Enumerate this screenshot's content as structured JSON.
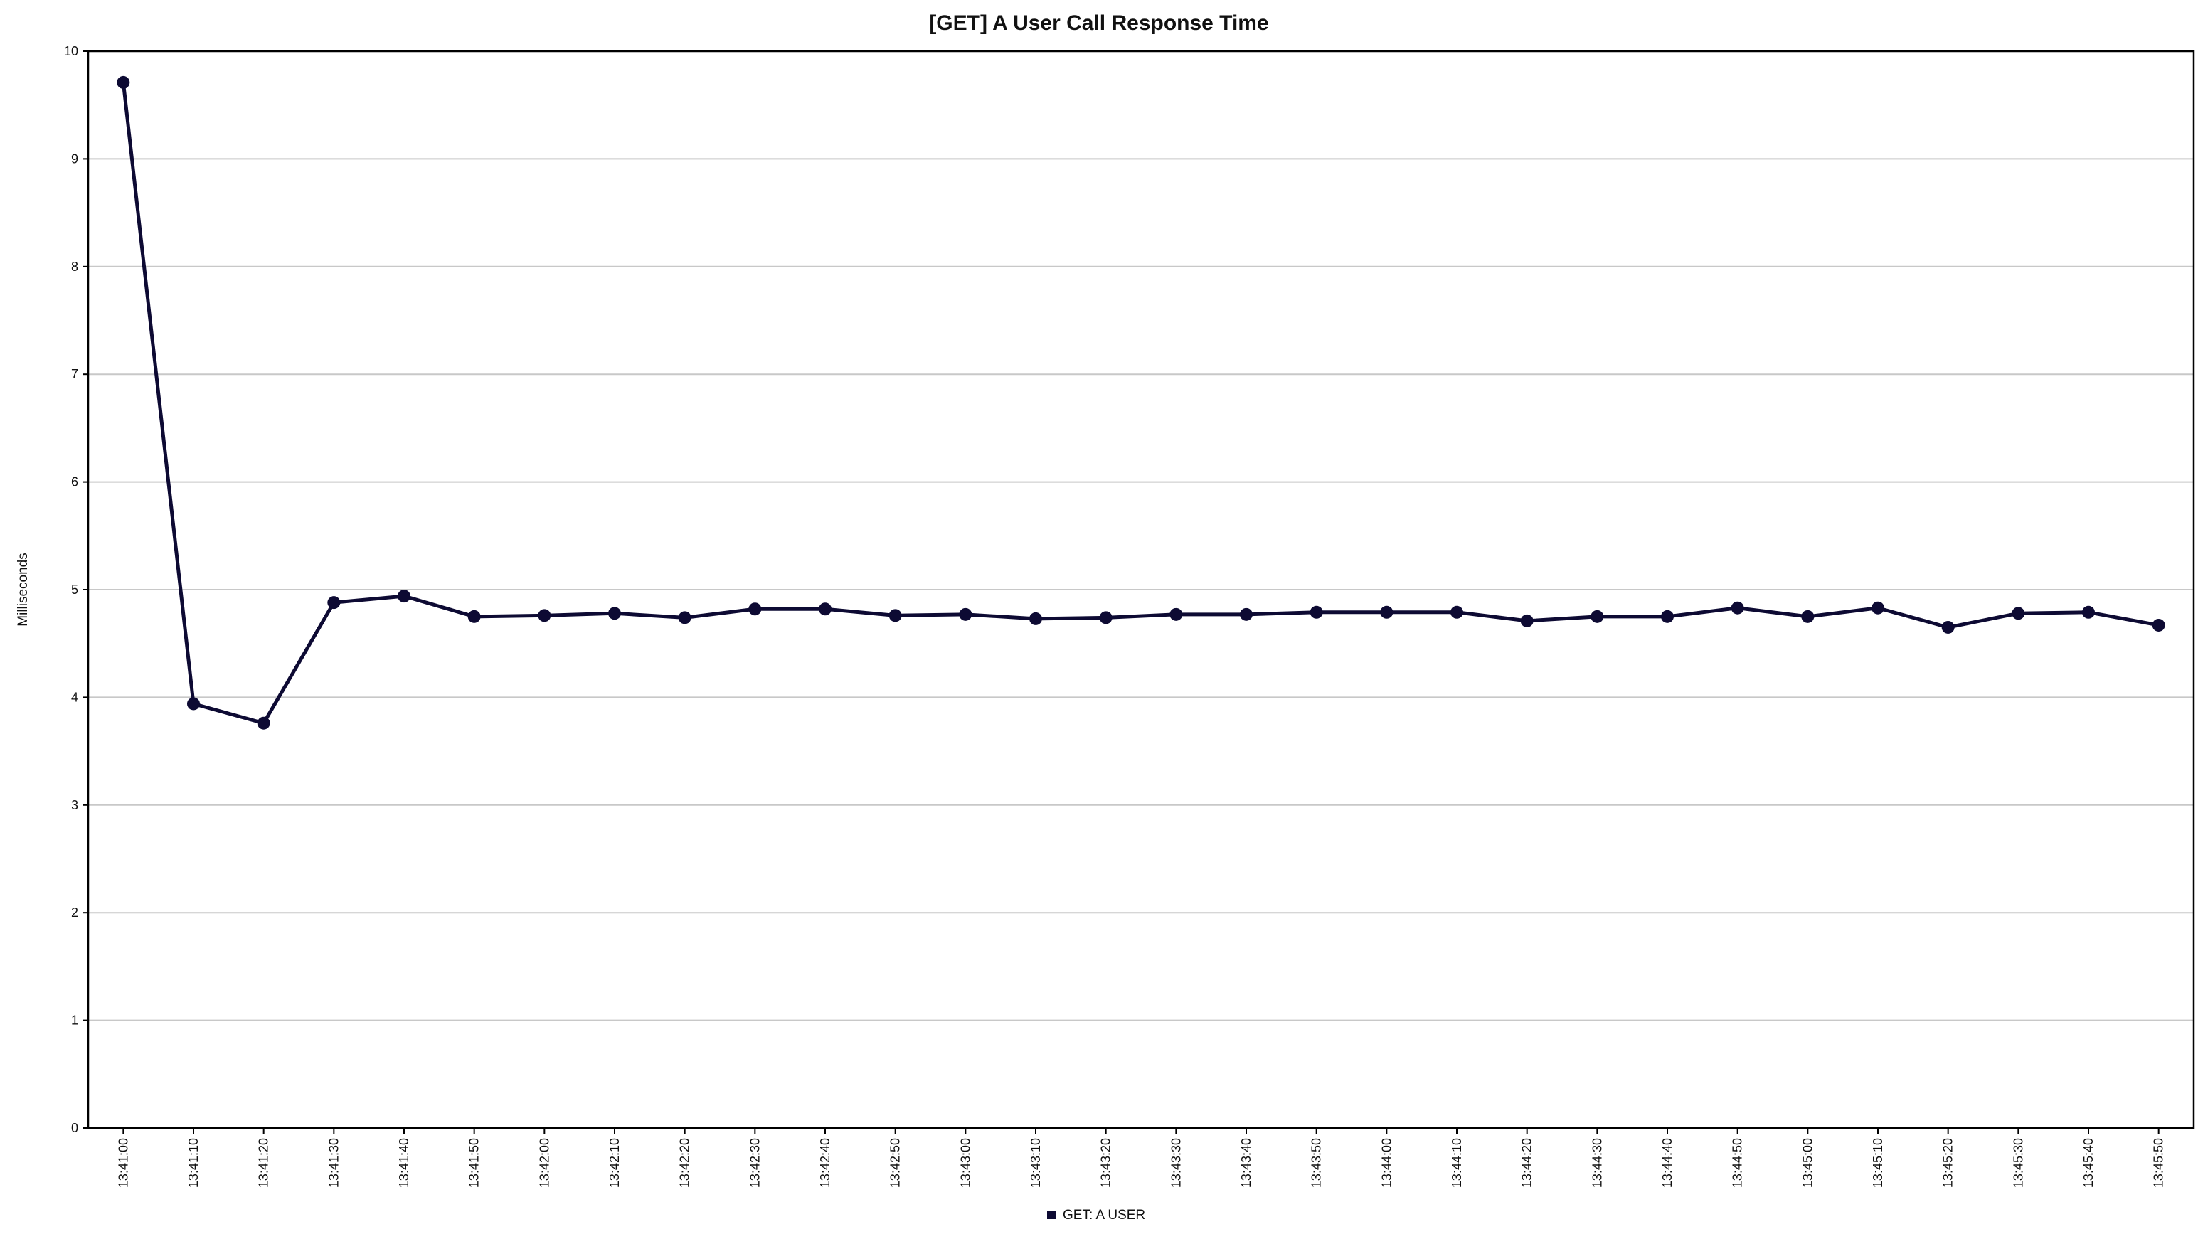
{
  "chart_data": {
    "type": "line",
    "title": "[GET] A User Call Response Time",
    "xlabel": "",
    "ylabel": "Milliseconds",
    "ylim": [
      0,
      10
    ],
    "yticks": [
      0,
      1,
      2,
      3,
      4,
      5,
      6,
      7,
      8,
      9,
      10
    ],
    "grid": true,
    "legend_position": "bottom-center",
    "x": [
      "13:41:00",
      "13:41:10",
      "13:41:20",
      "13:41:30",
      "13:41:40",
      "13:41:50",
      "13:42:00",
      "13:42:10",
      "13:42:20",
      "13:42:30",
      "13:42:40",
      "13:42:50",
      "13:43:00",
      "13:43:10",
      "13:43:20",
      "13:43:30",
      "13:43:40",
      "13:43:50",
      "13:44:00",
      "13:44:10",
      "13:44:20",
      "13:44:30",
      "13:44:40",
      "13:44:50",
      "13:45:00",
      "13:45:10",
      "13:45:20",
      "13:45:30",
      "13:45:40",
      "13:45:50"
    ],
    "series": [
      {
        "name": "GET: A USER",
        "color": "#0d0a33",
        "values": [
          9.71,
          3.94,
          3.76,
          4.88,
          4.94,
          4.75,
          4.76,
          4.78,
          4.74,
          4.82,
          4.82,
          4.76,
          4.77,
          4.73,
          4.74,
          4.77,
          4.77,
          4.79,
          4.79,
          4.79,
          4.71,
          4.75,
          4.75,
          4.83,
          4.75,
          4.83,
          4.65,
          4.78,
          4.79,
          4.67
        ]
      }
    ]
  }
}
